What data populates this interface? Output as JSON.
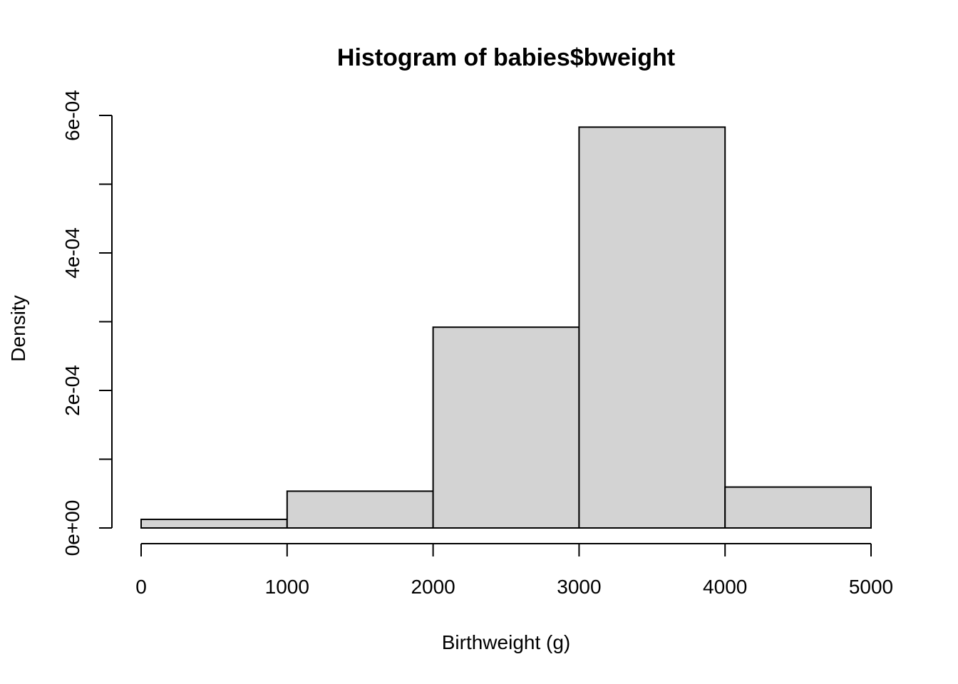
{
  "chart_data": {
    "type": "bar",
    "title": "Histogram of babies$bweight",
    "xlabel": "Birthweight (g)",
    "ylabel": "Density",
    "bins": [
      {
        "x0": 0,
        "x1": 1000,
        "density": 1.25e-05
      },
      {
        "x0": 1000,
        "x1": 2000,
        "density": 5.35e-05
      },
      {
        "x0": 2000,
        "x1": 3000,
        "density": 0.000292
      },
      {
        "x0": 3000,
        "x1": 4000,
        "density": 0.000583
      },
      {
        "x0": 4000,
        "x1": 5000,
        "density": 5.95e-05
      }
    ],
    "xlim": [
      0,
      5000
    ],
    "ylim": [
      0,
      0.0006
    ],
    "x_ticks": [
      0,
      1000,
      2000,
      3000,
      4000,
      5000
    ],
    "x_tick_labels": [
      "0",
      "1000",
      "2000",
      "3000",
      "4000",
      "5000"
    ],
    "y_ticks": [
      0,
      0.0001,
      0.0002,
      0.0003,
      0.0004,
      0.0005,
      0.0006
    ],
    "y_tick_labels": [
      "0e+00",
      "",
      "2e-04",
      "",
      "4e-04",
      "",
      "6e-04"
    ],
    "bar_color": "#d3d3d3",
    "grid": false,
    "legend": "none"
  }
}
